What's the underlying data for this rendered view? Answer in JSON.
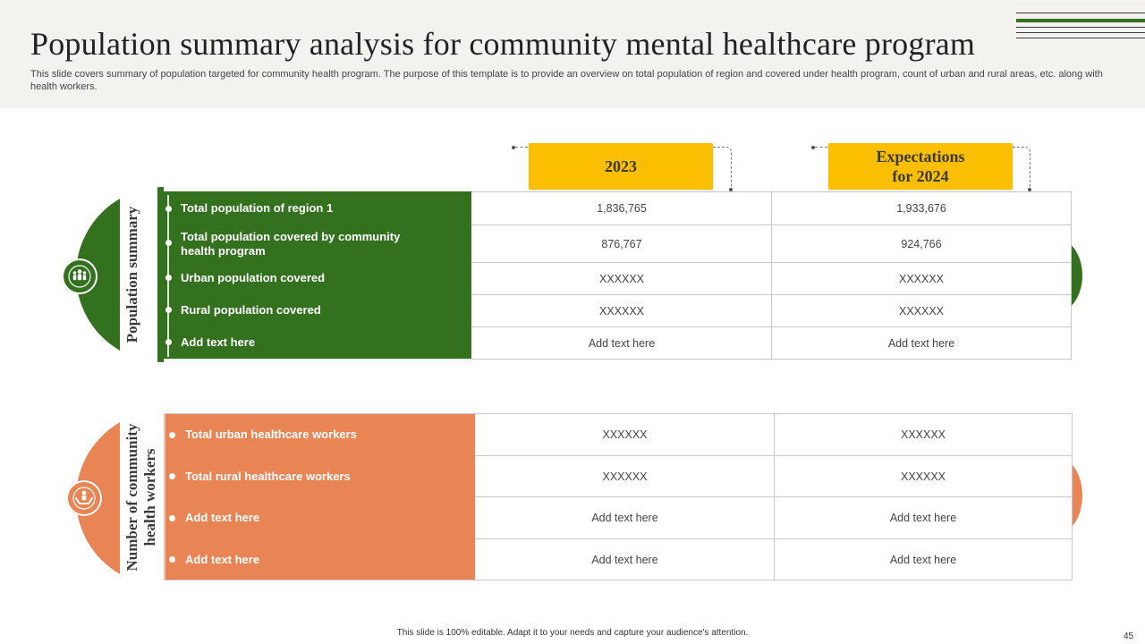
{
  "header": {
    "title": "Population summary analysis for community mental healthcare program",
    "subtitle": "This slide covers summary of population targeted for community health program. The purpose of this template is to provide an overview on total population of region and covered under health program, count of urban and rural areas, etc. along with health workers."
  },
  "columns": {
    "col1": "2023",
    "col2_line1": "Expectations",
    "col2_line2": "for 2024"
  },
  "population_summary": {
    "label": "Population summary",
    "icon": "people-group-icon",
    "color": "#33711f",
    "rows": [
      {
        "label_line1": "Total population of region 1",
        "label_line2": "",
        "v2023": "1,836,765",
        "v2024": "1,933,676"
      },
      {
        "label_line1": "Total population covered by community",
        "label_line2": "health program",
        "v2023": "876,767",
        "v2024": "924,766"
      },
      {
        "label_line1": "Urban population covered",
        "label_line2": "",
        "v2023": "XXXXXX",
        "v2024": "XXXXXX"
      },
      {
        "label_line1": "Rural population covered",
        "label_line2": "",
        "v2023": "XXXXXX",
        "v2024": "XXXXXX"
      },
      {
        "label_line1": "Add text here",
        "label_line2": "",
        "v2023": "Add text here",
        "v2024": "Add text here"
      }
    ]
  },
  "health_workers": {
    "label_line1": "Number of community",
    "label_line2": "health workers",
    "icon": "hands-person-icon",
    "color": "#e98454",
    "rows": [
      {
        "label": "Total urban healthcare workers",
        "v2023": "XXXXXX",
        "v2024": "XXXXXX"
      },
      {
        "label": "Total rural healthcare workers",
        "v2023": "XXXXXX",
        "v2024": "XXXXXX"
      },
      {
        "label": "Add text here",
        "v2023": "Add text here",
        "v2024": "Add text here"
      },
      {
        "label": "Add text here",
        "v2023": "Add text here",
        "v2024": "Add text here"
      }
    ]
  },
  "footer": {
    "note": "This slide is 100% editable. Adapt it to your needs and capture your audience's attention.",
    "page_number": "45"
  }
}
